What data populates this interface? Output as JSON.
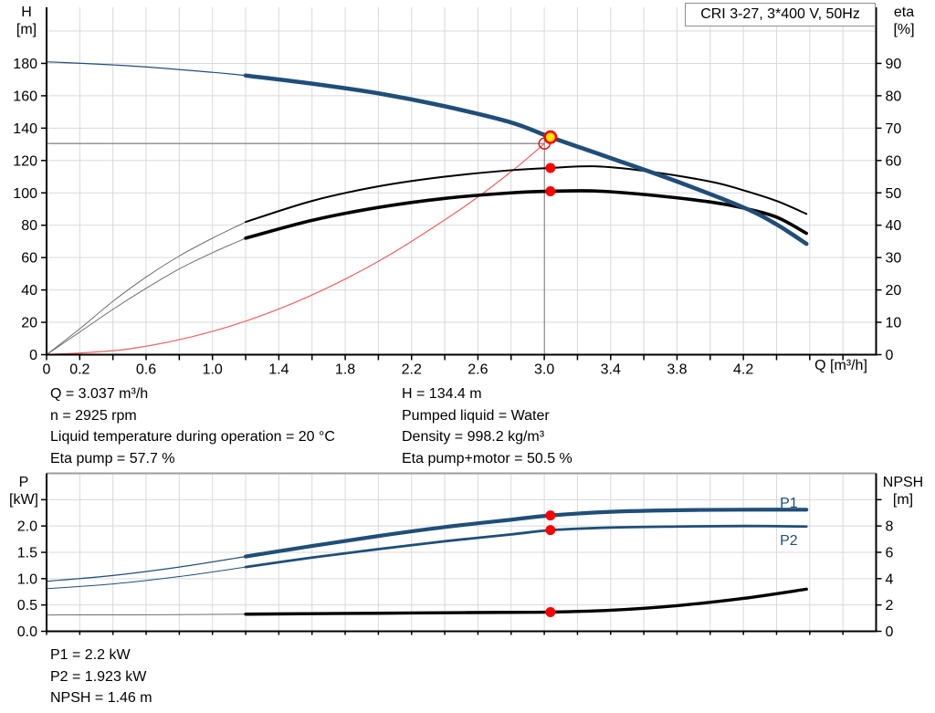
{
  "title_box": "CRI 3-27, 3*400 V, 50Hz",
  "colors": {
    "blue": "#1f4e79",
    "red_line": "#f26060",
    "red_marker": "#ff0000",
    "yellow": "#ffe400",
    "grid": "#d9d9d9",
    "crosshair": "#8c8c8c",
    "axis": "#000000",
    "thin_gray": "#6e6e6e",
    "border_gray": "#9c9c9c"
  },
  "top_info": {
    "left": [
      "Q = 3.037 m³/h",
      "n = 2925 rpm",
      "Liquid temperature during operation = 20 °C",
      "Eta pump = 57.7 %"
    ],
    "right": [
      "H = 134.4 m",
      "Pumped liquid = Water",
      "Density = 998.2 kg/m³",
      "Eta pump+motor = 50.5 %"
    ]
  },
  "bottom_info": [
    "P1 = 2.2 kW",
    "P2 = 1.923 kW",
    "NPSH = 1.46 m"
  ],
  "chart_data": [
    {
      "type": "line",
      "title": "CRI 3-27, 3*400 V, 50Hz",
      "x_axis": {
        "title": "Q [m³/h]",
        "min": 0,
        "max": 5.0,
        "tick_step": 0.2,
        "tick_labels": [
          "0",
          "0.2",
          "0.6",
          "1.0",
          "1.4",
          "1.8",
          "2.2",
          "2.6",
          "3.0",
          "3.4",
          "3.8",
          "4.2"
        ]
      },
      "left_axis": {
        "title_lines": [
          "H",
          "[m]"
        ],
        "min": 0,
        "max": 200,
        "tick_step": 20,
        "tick_labels": [
          "0",
          "20",
          "40",
          "60",
          "80",
          "100",
          "120",
          "140",
          "160",
          "180"
        ]
      },
      "right_axis": {
        "title_lines": [
          "eta",
          "[%]"
        ],
        "min": 0,
        "max": 100,
        "tick_step": 10,
        "tick_labels": [
          "0",
          "10",
          "20",
          "30",
          "40",
          "50",
          "60",
          "70",
          "80",
          "90"
        ]
      },
      "series": [
        {
          "id": "system-curve",
          "name": "System curve",
          "axis": "left",
          "color": "red_line",
          "width": 1.2,
          "thin_until": 0,
          "points": [
            [
              0,
              0
            ],
            [
              0.5,
              3.6
            ],
            [
              1,
              14.4
            ],
            [
              1.5,
              32.4
            ],
            [
              2,
              57.7
            ],
            [
              2.5,
              90.2
            ],
            [
              2.8,
              113.1
            ],
            [
              3.001,
              130.5
            ]
          ]
        },
        {
          "id": "eta-pump-curve",
          "name": "Eta pump",
          "axis": "right",
          "color": "axis",
          "width": 2,
          "thin_width": 1,
          "thin_color": "thin_gray",
          "thin_until": 1.2,
          "points": [
            [
              0,
              0
            ],
            [
              0.2,
              8
            ],
            [
              0.4,
              16.5
            ],
            [
              0.6,
              24
            ],
            [
              0.8,
              30.5
            ],
            [
              1,
              36
            ],
            [
              1.2,
              41
            ],
            [
              1.6,
              47.5
            ],
            [
              2,
              52
            ],
            [
              2.4,
              55
            ],
            [
              2.8,
              57
            ],
            [
              3.037,
              57.7
            ],
            [
              3.3,
              58.2
            ],
            [
              3.6,
              56.8
            ],
            [
              4,
              53.5
            ],
            [
              4.2,
              50.8
            ],
            [
              4.4,
              47.5
            ],
            [
              4.58,
              43.5
            ]
          ]
        },
        {
          "id": "eta-pump-motor-curve",
          "name": "Eta pump+motor",
          "axis": "right",
          "color": "axis",
          "width": 3.6,
          "thin_width": 1,
          "thin_color": "thin_gray",
          "thin_until": 1.2,
          "points": [
            [
              0,
              0
            ],
            [
              0.2,
              7
            ],
            [
              0.4,
              14
            ],
            [
              0.6,
              20.5
            ],
            [
              0.8,
              26.5
            ],
            [
              1,
              31.5
            ],
            [
              1.2,
              36
            ],
            [
              1.6,
              41.5
            ],
            [
              2,
              45.5
            ],
            [
              2.4,
              48.3
            ],
            [
              2.8,
              50
            ],
            [
              3.037,
              50.5
            ],
            [
              3.3,
              50.6
            ],
            [
              3.6,
              49.5
            ],
            [
              4,
              47.2
            ],
            [
              4.2,
              45.3
            ],
            [
              4.4,
              42.5
            ],
            [
              4.58,
              37.5
            ]
          ]
        },
        {
          "id": "h-curve",
          "name": "H curve",
          "axis": "left",
          "color": "blue",
          "width": 4.6,
          "thin_width": 1.2,
          "thin_until": 1.2,
          "points": [
            [
              0,
              181
            ],
            [
              0.5,
              178.5
            ],
            [
              1,
              174.5
            ],
            [
              1.2,
              172.5
            ],
            [
              1.6,
              167.5
            ],
            [
              2,
              161.5
            ],
            [
              2.4,
              153.5
            ],
            [
              2.8,
              143.5
            ],
            [
              3.037,
              134.4
            ],
            [
              3.4,
              121.5
            ],
            [
              3.8,
              107
            ],
            [
              4.2,
              91
            ],
            [
              4.4,
              80.5
            ],
            [
              4.58,
              68.5
            ]
          ]
        }
      ],
      "crosshair": {
        "q": 3.001,
        "v_top": 134.4,
        "h_level": 130.5
      },
      "markers": [
        {
          "id": "eta-pump-point",
          "style": "dot",
          "axis": "right",
          "q": 3.037,
          "v": 57.7
        },
        {
          "id": "eta-pump-motor-point",
          "style": "dot",
          "axis": "right",
          "q": 3.037,
          "v": 50.5
        },
        {
          "id": "requested-duty-point",
          "style": "open",
          "axis": "left",
          "q": 3.001,
          "v": 130.5
        },
        {
          "id": "duty-point",
          "style": "duty",
          "axis": "left",
          "q": 3.037,
          "v": 134.4
        }
      ],
      "curve_labels": []
    },
    {
      "type": "line",
      "x_axis": {
        "title": "",
        "min": 0,
        "max": 5.0,
        "tick_step": 0.2,
        "tick_labels": []
      },
      "left_axis": {
        "title_lines": [
          "P",
          "[kW]"
        ],
        "min": 0,
        "max": 3.0,
        "tick_step": 0.5,
        "tick_labels": [
          "0.0",
          "0.5",
          "1.0",
          "1.5",
          "2.0"
        ]
      },
      "right_axis": {
        "title_lines": [
          "NPSH",
          "[m]"
        ],
        "min": 0,
        "max": 12,
        "tick_step": 2,
        "tick_labels": [
          "0",
          "2",
          "4",
          "6",
          "8"
        ]
      },
      "series": [
        {
          "id": "npsh-curve",
          "name": "NPSH",
          "axis": "right",
          "color": "axis",
          "width": 3.4,
          "thin_width": 1,
          "thin_color": "thin_gray",
          "thin_until": 1.2,
          "points": [
            [
              0,
              1.24
            ],
            [
              0.5,
              1.25
            ],
            [
              1,
              1.28
            ],
            [
              1.2,
              1.3
            ],
            [
              1.6,
              1.34
            ],
            [
              2,
              1.37
            ],
            [
              2.4,
              1.41
            ],
            [
              2.8,
              1.44
            ],
            [
              3.037,
              1.46
            ],
            [
              3.4,
              1.6
            ],
            [
              3.8,
              1.95
            ],
            [
              4.2,
              2.5
            ],
            [
              4.58,
              3.2
            ]
          ]
        },
        {
          "id": "p2-curve",
          "name": "P2",
          "axis": "left",
          "color": "blue",
          "width": 2.8,
          "thin_width": 1,
          "thin_until": 1.2,
          "points": [
            [
              0,
              0.81
            ],
            [
              0.4,
              0.9
            ],
            [
              0.8,
              1.04
            ],
            [
              1.2,
              1.22
            ],
            [
              1.6,
              1.4
            ],
            [
              2,
              1.56
            ],
            [
              2.4,
              1.71
            ],
            [
              2.8,
              1.84
            ],
            [
              3.037,
              1.92
            ],
            [
              3.4,
              1.97
            ],
            [
              3.8,
              1.99
            ],
            [
              4.2,
              2.0
            ],
            [
              4.58,
              1.99
            ]
          ]
        },
        {
          "id": "p1-curve",
          "name": "P1",
          "axis": "left",
          "color": "blue",
          "width": 4.2,
          "thin_width": 1.2,
          "thin_until": 1.2,
          "points": [
            [
              0,
              0.95
            ],
            [
              0.4,
              1.06
            ],
            [
              0.8,
              1.22
            ],
            [
              1.2,
              1.42
            ],
            [
              1.6,
              1.62
            ],
            [
              2,
              1.81
            ],
            [
              2.4,
              1.98
            ],
            [
              2.8,
              2.12
            ],
            [
              3.037,
              2.2
            ],
            [
              3.4,
              2.27
            ],
            [
              3.8,
              2.3
            ],
            [
              4.2,
              2.31
            ],
            [
              4.58,
              2.31
            ]
          ]
        }
      ],
      "markers": [
        {
          "id": "p1-point",
          "style": "dot",
          "axis": "left",
          "q": 3.037,
          "v": 2.2
        },
        {
          "id": "p2-point",
          "style": "dot",
          "axis": "left",
          "q": 3.037,
          "v": 1.923
        },
        {
          "id": "npsh-point",
          "style": "dot",
          "axis": "right",
          "q": 3.037,
          "v": 1.46
        }
      ],
      "curve_labels": [
        {
          "text": "P1",
          "q": 4.42,
          "v": 2.35,
          "color": "blue"
        },
        {
          "text": "P2",
          "q": 4.42,
          "v": 1.64,
          "color": "blue"
        }
      ]
    }
  ]
}
